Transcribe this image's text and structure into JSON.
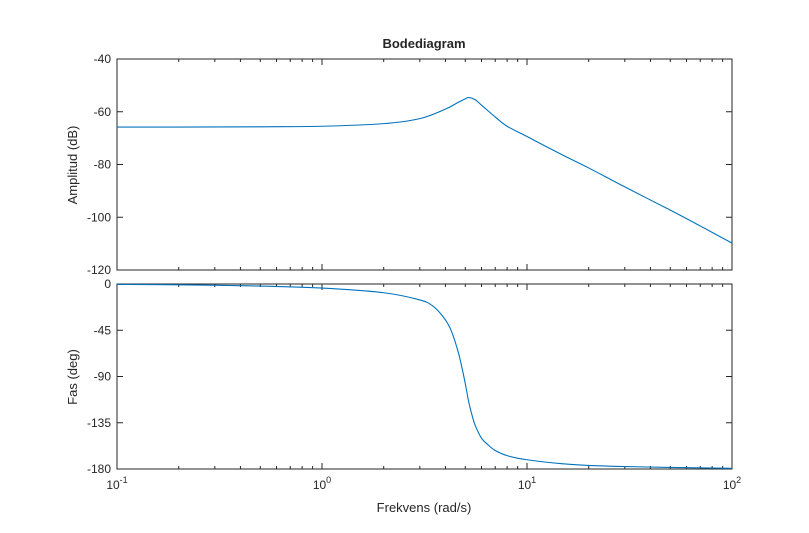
{
  "chart_data": [
    {
      "type": "line",
      "title": "Bodediagram",
      "xlabel": "",
      "ylabel": "Amplitud (dB)",
      "xscale": "log",
      "xlim": [
        0.1,
        100
      ],
      "ylim": [
        -120,
        -40
      ],
      "yticks": [
        -40,
        -60,
        -80,
        -100,
        -120
      ],
      "grid": false,
      "series": [
        {
          "color": "#0072bd",
          "x": [
            0.1,
            0.2,
            0.5,
            1.0,
            2.0,
            3.0,
            4.0,
            4.6,
            5.0,
            5.2,
            5.6,
            6.0,
            7.0,
            8.0,
            10.0,
            15.0,
            20.0,
            30.0,
            50.0,
            70.0,
            100.0
          ],
          "y": [
            -65.8,
            -65.8,
            -65.7,
            -65.5,
            -64.5,
            -62.6,
            -59.0,
            -56.5,
            -55.1,
            -54.6,
            -55.5,
            -57.5,
            -62.0,
            -65.5,
            -69.4,
            -76.5,
            -81.3,
            -88.5,
            -97.3,
            -103.3,
            -109.8
          ]
        }
      ]
    },
    {
      "type": "line",
      "title": "",
      "xlabel": "Frekvens  (rad/s)",
      "ylabel": "Fas (deg)",
      "xscale": "log",
      "xlim": [
        0.1,
        100
      ],
      "ylim": [
        -180,
        0
      ],
      "yticks": [
        0,
        -45,
        -90,
        -135,
        -180
      ],
      "xticks": [
        {
          "base": "10",
          "exp": "-1",
          "value": 0.1
        },
        {
          "base": "10",
          "exp": "0",
          "value": 1
        },
        {
          "base": "10",
          "exp": "1",
          "value": 10
        },
        {
          "base": "10",
          "exp": "2",
          "value": 100
        }
      ],
      "grid": false,
      "series": [
        {
          "color": "#0072bd",
          "x": [
            0.1,
            0.2,
            0.5,
            1.0,
            2.0,
            3.0,
            3.5,
            4.0,
            4.3,
            4.6,
            4.8,
            5.0,
            5.2,
            5.4,
            5.6,
            6.0,
            6.5,
            7.0,
            8.0,
            10.0,
            15.0,
            20.0,
            30.0,
            50.0,
            100.0
          ],
          "y": [
            -0.4,
            -0.8,
            -2.0,
            -4.0,
            -8.5,
            -15.5,
            -22.0,
            -35.0,
            -47.0,
            -65.0,
            -80.0,
            -97.0,
            -115.0,
            -128.0,
            -138.0,
            -150.0,
            -157.0,
            -162.0,
            -167.0,
            -171.0,
            -175.0,
            -176.5,
            -177.6,
            -178.5,
            -179.3
          ]
        }
      ]
    }
  ]
}
